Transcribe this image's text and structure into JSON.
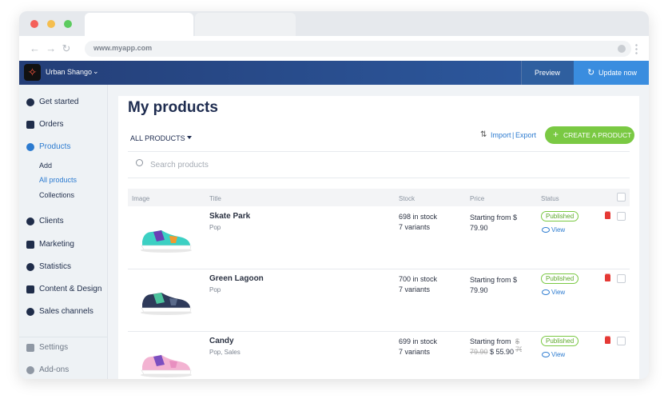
{
  "browser": {
    "url": "www.myapp.com"
  },
  "header": {
    "store_name": "Urban Shango",
    "preview": "Preview",
    "update": "Update now"
  },
  "sidebar": {
    "items": [
      "Get started",
      "Orders",
      "Products",
      "Add",
      "All products",
      "Collections",
      "Clients",
      "Marketing",
      "Statistics",
      "Content & Design",
      "Sales channels",
      "Settings",
      "Add-ons"
    ]
  },
  "main": {
    "title": "My products",
    "filter": "ALL PRODUCTS",
    "import": "Import",
    "separator": "|",
    "export": "Export",
    "create": "CREATE A PRODUCT",
    "search": "Search products"
  },
  "table": {
    "headers": [
      "Image",
      "Title",
      "Stock",
      "Price",
      "Status"
    ],
    "rows": [
      {
        "title": "Skate Park",
        "category": "Pop",
        "stock": "698 in stock",
        "variants": "7 variants",
        "price": "Starting from $ 79.90",
        "status": "Published",
        "view": "View"
      },
      {
        "title": "Green Lagoon",
        "category": "Pop",
        "stock": "700 in stock",
        "variants": "7 variants",
        "price": "Starting from $ 79.90",
        "status": "Published",
        "view": "View"
      },
      {
        "title": "Candy",
        "category": "Pop, Sales",
        "stock": "699 in stock",
        "variants": "7 variants",
        "price": "Starting from",
        "old_price": "$ 79.90",
        "sale_price": "$ 55.90",
        "status": "Published",
        "view": "View"
      }
    ]
  }
}
